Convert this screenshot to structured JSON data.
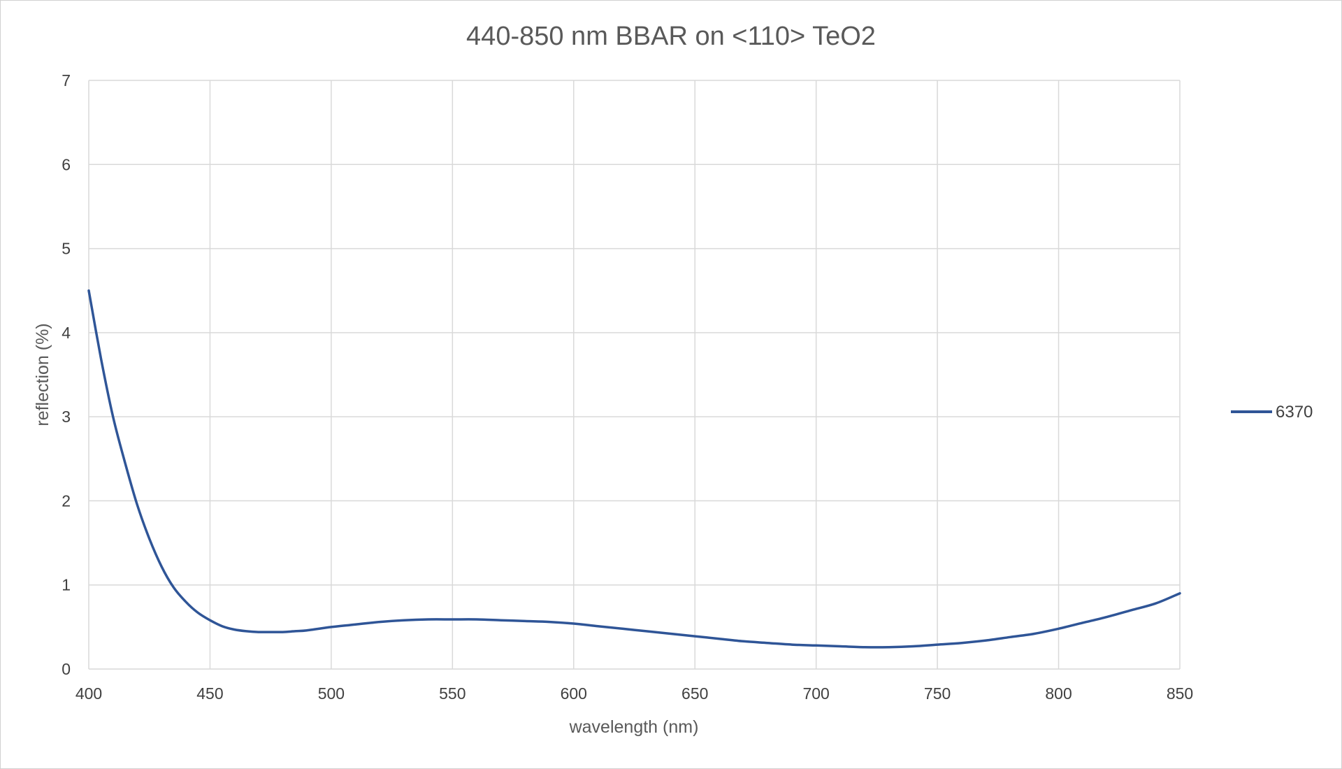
{
  "chart_data": {
    "type": "line",
    "title": "440-850 nm BBAR on <110> TeO2",
    "xlabel": "wavelength (nm)",
    "ylabel": "reflection (%)",
    "xlim": [
      400,
      850
    ],
    "ylim": [
      0,
      7
    ],
    "x_ticks": [
      "400",
      "450",
      "500",
      "550",
      "600",
      "650",
      "700",
      "750",
      "800",
      "850"
    ],
    "y_ticks": [
      "0",
      "1",
      "2",
      "3",
      "4",
      "5",
      "6",
      "7"
    ],
    "grid": true,
    "legend_position": "right",
    "series": [
      {
        "name": "6370",
        "color": "#2f5597",
        "x": [
          400,
          405,
          410,
          415,
          420,
          425,
          430,
          435,
          440,
          445,
          450,
          455,
          460,
          465,
          470,
          475,
          480,
          485,
          490,
          500,
          510,
          520,
          530,
          540,
          550,
          560,
          570,
          580,
          590,
          600,
          610,
          620,
          630,
          640,
          650,
          660,
          670,
          680,
          690,
          700,
          710,
          720,
          730,
          740,
          750,
          760,
          770,
          780,
          790,
          800,
          810,
          820,
          830,
          840,
          850
        ],
        "y": [
          4.5,
          3.7,
          3.0,
          2.45,
          1.95,
          1.55,
          1.22,
          0.97,
          0.8,
          0.67,
          0.58,
          0.51,
          0.47,
          0.45,
          0.44,
          0.44,
          0.44,
          0.45,
          0.46,
          0.5,
          0.53,
          0.56,
          0.58,
          0.59,
          0.59,
          0.59,
          0.58,
          0.57,
          0.56,
          0.54,
          0.51,
          0.48,
          0.45,
          0.42,
          0.39,
          0.36,
          0.33,
          0.31,
          0.29,
          0.28,
          0.27,
          0.26,
          0.26,
          0.27,
          0.29,
          0.31,
          0.34,
          0.38,
          0.42,
          0.48,
          0.55,
          0.62,
          0.7,
          0.78,
          0.9
        ]
      }
    ]
  }
}
